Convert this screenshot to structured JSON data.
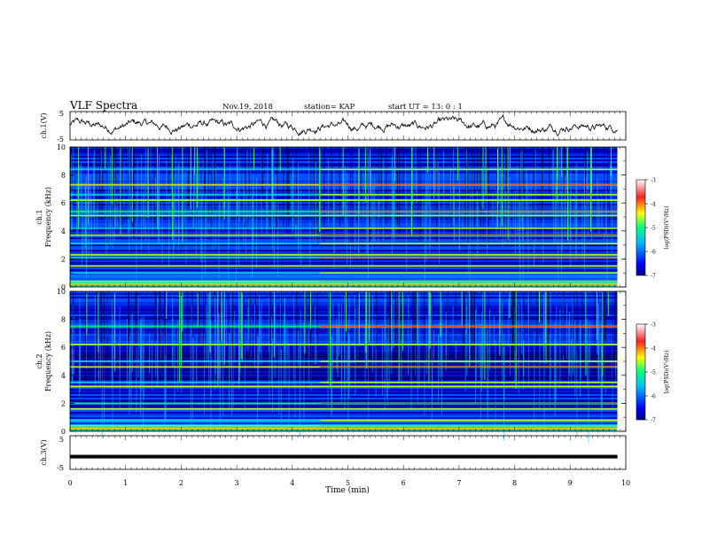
{
  "header": {
    "title": "VLF Spectra",
    "date": "Nov.19, 2018",
    "station": "station= KAP",
    "start_ut": "start  UT =   13: 0   : 1"
  },
  "chart_data": [
    {
      "type": "line",
      "panel": "ch1-waveform",
      "ylabel": "ch.1(V)",
      "ylim": [
        -5,
        5
      ],
      "yticks": [
        "5",
        "-5"
      ],
      "x_range_min": [
        0,
        9.85
      ],
      "description_values": "waveform oscillating roughly between -2.5 and +2.5 V"
    },
    {
      "type": "heatmap",
      "panel": "ch1-spectrogram",
      "ylabel_line1": "ch.1",
      "ylabel_line2": "Frequency (kHz)",
      "ylim": [
        0,
        10
      ],
      "yticks": [
        "0",
        "2",
        "4",
        "6",
        "8",
        "10"
      ],
      "x_range_min": [
        0,
        9.85
      ],
      "colorbar": {
        "label": "log(PSD)(V²/Hz)",
        "range": [
          -7,
          -3
        ],
        "ticks": [
          "-3",
          "-4",
          "-5",
          "-6",
          "-7"
        ]
      },
      "bands_khz": [
        0.4,
        1.0,
        1.5,
        2.1,
        2.3,
        3.1,
        3.7,
        4.2,
        5.1,
        5.4,
        6.2,
        6.6,
        7.3,
        8.4
      ],
      "onset_min": 4.5
    },
    {
      "type": "heatmap",
      "panel": "ch2-spectrogram",
      "ylabel_line1": "ch.2",
      "ylabel_line2": "Frequency (kHz)",
      "ylim": [
        0,
        10
      ],
      "yticks": [
        "0",
        "2",
        "4",
        "6",
        "8",
        "10"
      ],
      "x_range_min": [
        0,
        9.85
      ],
      "colorbar": {
        "label": "log(PSD)(V²/Hz)",
        "range": [
          -7,
          -3
        ],
        "ticks": [
          "-3",
          "-4",
          "-5",
          "-6",
          "-7"
        ]
      },
      "bands_khz": [
        0.4,
        0.8,
        1.6,
        2.0,
        3.2,
        3.5,
        4.6,
        5.0,
        6.2,
        7.5
      ],
      "onset_min": 4.5
    },
    {
      "type": "line",
      "panel": "ch3-waveform",
      "ylabel": "ch.3(V)",
      "ylim": [
        -5,
        5
      ],
      "yticks": [
        "5",
        "-5"
      ],
      "y_constant": -1.2,
      "x_range_min": [
        0,
        9.85
      ]
    }
  ],
  "xaxis": {
    "label": "Time  (min)",
    "ticks": [
      "0",
      "1",
      "2",
      "3",
      "4",
      "5",
      "6",
      "7",
      "8",
      "9",
      "10"
    ],
    "range": [
      0,
      10
    ]
  }
}
